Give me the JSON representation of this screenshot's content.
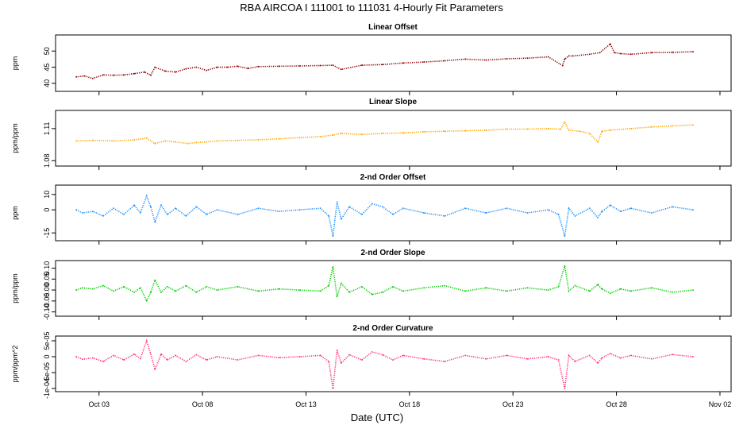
{
  "figure": {
    "title": "RBA   AIRCOA I   111001 to 111031   4-Hourly Fit Parameters",
    "xlabel": "Date (UTC)"
  },
  "chart_data": [
    {
      "type": "scatter",
      "title": "Linear Offset",
      "ylabel": "ppm",
      "xlabel": "Date (UTC)",
      "x_range": [
        "Oct 01",
        "Nov 02"
      ],
      "x_ticks": [
        "Oct 03",
        "Oct 08",
        "Oct 13",
        "Oct 18",
        "Oct 23",
        "Oct 28",
        "Nov 02"
      ],
      "ylim": [
        38.5,
        54
      ],
      "y_ticks": [
        {
          "value": 40,
          "label": "40"
        },
        {
          "value": 45,
          "label": "45"
        },
        {
          "value": 50,
          "label": "50"
        }
      ],
      "color": "#8b0000",
      "series": [
        {
          "x_day": [
            1.2,
            1.6,
            2.0,
            2.5,
            3.0,
            3.5,
            4.0,
            4.5,
            4.8,
            5.0,
            5.5,
            6.0,
            6.5,
            7.0,
            7.5,
            8.0,
            8.5,
            9.0,
            9.5,
            10.0,
            11.0,
            12.0,
            13.0,
            13.6,
            14.0,
            15.0,
            16.0,
            17.0,
            18.0,
            19.0,
            20.0,
            21.0,
            22.0,
            23.0,
            24.0,
            24.7,
            24.8,
            25.0,
            25.2,
            26.0,
            26.5,
            27.0,
            27.2,
            27.5,
            28.0,
            29.0,
            30.0,
            31.0
          ],
          "values": [
            42,
            42.3,
            41.5,
            42.6,
            42.5,
            42.6,
            43,
            43.5,
            42.5,
            45,
            43.8,
            43.5,
            44.5,
            45,
            44,
            45,
            45,
            45.3,
            44.6,
            45.2,
            45.3,
            45.4,
            45.5,
            45.6,
            44.3,
            45.6,
            45.8,
            46.3,
            46.6,
            47,
            47.5,
            47.2,
            47.6,
            47.8,
            48.2,
            45.5,
            47.5,
            48.5,
            48.5,
            49,
            49.5,
            52.2,
            49.5,
            49.2,
            49,
            49.5,
            49.6,
            49.8
          ]
        }
      ]
    },
    {
      "type": "scatter",
      "title": "Linear Slope",
      "ylabel": "ppm/ppm",
      "ylim": [
        1.078,
        1.124
      ],
      "y_ticks": [
        {
          "value": 1.08,
          "label": "1.08"
        },
        {
          "value": 1.11,
          "label": "1.11"
        }
      ],
      "color": "#ffa500",
      "series": [
        {
          "x_day": [
            1.2,
            2.0,
            3.0,
            4.0,
            4.6,
            5.0,
            5.5,
            6.0,
            6.6,
            7.0,
            7.5,
            8.0,
            9.0,
            10.0,
            11.0,
            12.0,
            13.0,
            13.6,
            14.0,
            15.0,
            16.0,
            17.0,
            18.0,
            19.0,
            20.0,
            21.0,
            22.0,
            23.0,
            24.0,
            24.6,
            24.8,
            25.0,
            25.5,
            26.0,
            26.4,
            26.6,
            27.0,
            28.0,
            29.0,
            30.0,
            31.0
          ],
          "values": [
            1.0985,
            1.099,
            1.0985,
            1.0995,
            1.101,
            1.096,
            1.0985,
            1.0975,
            1.096,
            1.097,
            1.0975,
            1.0985,
            1.099,
            1.0995,
            1.1005,
            1.1015,
            1.1025,
            1.104,
            1.1055,
            1.1045,
            1.1055,
            1.106,
            1.107,
            1.1075,
            1.108,
            1.1085,
            1.1095,
            1.1095,
            1.11,
            1.1095,
            1.116,
            1.1085,
            1.1075,
            1.1055,
            1.0975,
            1.1075,
            1.1085,
            1.11,
            1.1115,
            1.1125,
            1.1135
          ]
        }
      ]
    },
    {
      "type": "scatter",
      "title": "2-nd Order Offset",
      "ylabel": "ppm",
      "ylim": [
        -18,
        14
      ],
      "y_ticks": [
        {
          "value": 10,
          "label": "10"
        },
        {
          "value": 0,
          "label": "0"
        },
        {
          "value": -15,
          "label": "-15"
        }
      ],
      "color": "#1e90ff",
      "series": [
        {
          "x_day": [
            1.2,
            1.5,
            2.0,
            2.5,
            3.0,
            3.5,
            4.0,
            4.3,
            4.6,
            4.8,
            5.0,
            5.3,
            5.6,
            6.0,
            6.5,
            7.0,
            7.5,
            8.0,
            9.0,
            10.0,
            11.0,
            12.0,
            13.0,
            13.4,
            13.6,
            13.8,
            14.0,
            14.4,
            15.0,
            15.5,
            16.0,
            16.5,
            17.0,
            18.0,
            19.0,
            20.0,
            21.0,
            22.0,
            23.0,
            24.0,
            24.5,
            24.8,
            25.0,
            25.3,
            26.0,
            26.4,
            26.6,
            27.0,
            27.5,
            28.0,
            29.0,
            30.0,
            31.0
          ],
          "values": [
            0,
            -2,
            -1,
            -4,
            1,
            -3,
            3,
            -2,
            9,
            2,
            -8,
            3,
            -3,
            1,
            -4,
            2,
            -3,
            0,
            -3,
            1,
            -1,
            0,
            1,
            -4,
            -17,
            5,
            -6,
            2,
            -3,
            4,
            2,
            -3,
            1,
            -2,
            -4,
            1,
            -2,
            1,
            -2,
            0,
            -3,
            -17,
            1,
            -4,
            1,
            -5,
            -1,
            3,
            -1,
            1,
            -2,
            2,
            0
          ]
        }
      ]
    },
    {
      "type": "scatter",
      "title": "2-nd Order Slope",
      "ylabel": "ppm/ppm",
      "ylim": [
        -0.105,
        0.12
      ],
      "y_ticks": [
        {
          "value": 0.1,
          "label": "0.10"
        },
        {
          "value": 0.05,
          "label": "0.05"
        },
        {
          "value": 0,
          "label": "0.00"
        },
        {
          "value": -0.05,
          "label": "-0.05"
        },
        {
          "value": -0.1,
          "label": "-0.10"
        }
      ],
      "color": "#00cc00",
      "series": [
        {
          "x_day": [
            1.2,
            1.5,
            2.0,
            2.5,
            3.0,
            3.5,
            4.0,
            4.3,
            4.6,
            4.8,
            5.0,
            5.3,
            5.6,
            6.0,
            6.5,
            7.0,
            7.5,
            8.0,
            9.0,
            10.0,
            11.0,
            12.0,
            13.0,
            13.4,
            13.6,
            13.8,
            14.0,
            14.4,
            15.0,
            15.5,
            16.0,
            16.5,
            17.0,
            18.0,
            19.0,
            20.0,
            21.0,
            22.0,
            23.0,
            24.0,
            24.5,
            24.8,
            25.0,
            25.3,
            26.0,
            26.4,
            26.6,
            27.0,
            27.5,
            28.0,
            29.0,
            30.0,
            31.0
          ],
          "values": [
            0,
            0.01,
            0.005,
            0.02,
            -0.005,
            0.015,
            -0.01,
            0.01,
            -0.05,
            -0.01,
            0.045,
            -0.01,
            0.015,
            -0.005,
            0.02,
            -0.01,
            0.015,
            0,
            0.015,
            -0.005,
            0.005,
            0,
            -0.005,
            0.02,
            0.105,
            -0.03,
            0.03,
            -0.01,
            0.015,
            -0.02,
            -0.01,
            0.015,
            -0.005,
            0.01,
            0.02,
            -0.005,
            0.01,
            -0.005,
            0.01,
            0,
            0.015,
            0.11,
            -0.005,
            0.02,
            -0.005,
            0.025,
            0.005,
            -0.015,
            0.005,
            -0.005,
            0.01,
            -0.01,
            0
          ]
        }
      ]
    },
    {
      "type": "scatter",
      "title": "2-nd Order Curvature",
      "ylabel": "ppm/ppm^2",
      "ylim": [
        -0.0001,
        5.5e-05
      ],
      "y_ticks": [
        {
          "value": 5e-05,
          "label": "5e-05"
        },
        {
          "value": 0,
          "label": "0"
        },
        {
          "value": -5e-05,
          "label": "-5e-05"
        },
        {
          "value": -0.0001,
          "label": "-1e-04"
        }
      ],
      "color": "#ff3377",
      "series": [
        {
          "x_day": [
            1.2,
            1.5,
            2.0,
            2.5,
            3.0,
            3.5,
            4.0,
            4.3,
            4.6,
            4.8,
            5.0,
            5.3,
            5.6,
            6.0,
            6.5,
            7.0,
            7.5,
            8.0,
            9.0,
            10.0,
            11.0,
            12.0,
            13.0,
            13.4,
            13.6,
            13.8,
            14.0,
            14.4,
            15.0,
            15.5,
            16.0,
            16.5,
            17.0,
            18.0,
            19.0,
            20.0,
            21.0,
            22.0,
            23.0,
            24.0,
            24.5,
            24.8,
            25.0,
            25.3,
            26.0,
            26.4,
            26.6,
            27.0,
            27.5,
            28.0,
            29.0,
            30.0,
            31.0
          ],
          "values": [
            0,
            -8e-06,
            -4e-06,
            -1.5e-05,
            4e-06,
            -1e-05,
            8e-06,
            -6e-06,
            5e-05,
            8e-06,
            -4e-05,
            8e-06,
            -1e-05,
            4e-06,
            -1.5e-05,
            6e-06,
            -1e-05,
            0,
            -1e-05,
            4e-06,
            -3e-06,
            0,
            4e-06,
            -1.5e-05,
            -0.0001,
            2e-05,
            -2e-05,
            6e-06,
            -1e-05,
            1.5e-05,
            6e-06,
            -1e-05,
            4e-06,
            -7e-06,
            -1.5e-05,
            4e-06,
            -7e-06,
            4e-06,
            -7e-06,
            0,
            -1e-05,
            -0.0001,
            4e-06,
            -1.5e-05,
            4e-06,
            -2e-05,
            -4e-06,
            1e-05,
            -4e-06,
            4e-06,
            -7e-06,
            7e-06,
            0
          ]
        }
      ]
    }
  ]
}
